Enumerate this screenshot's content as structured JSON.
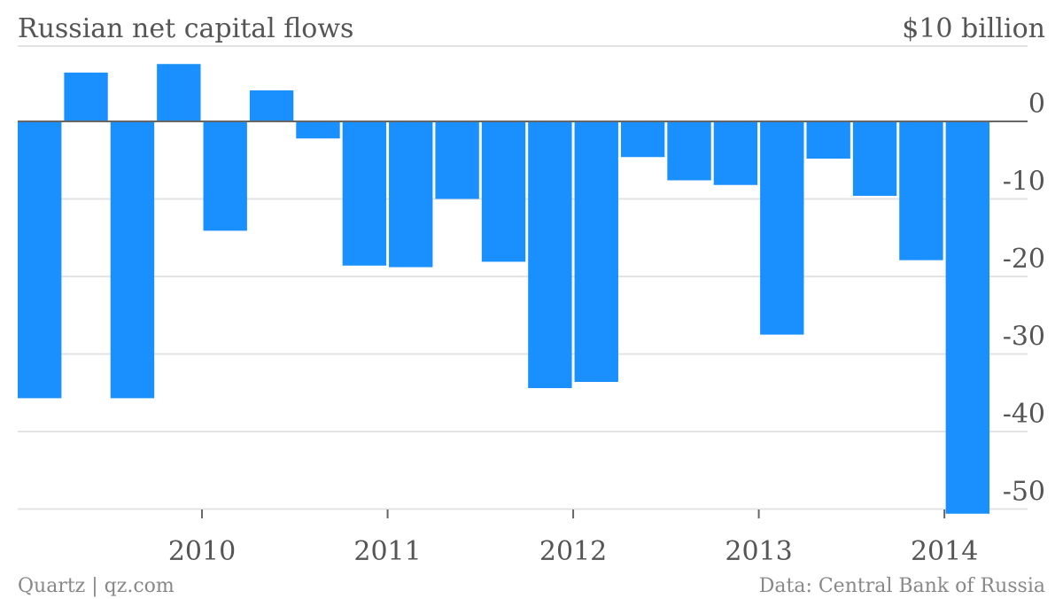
{
  "header": {
    "title": "Russian net capital flows",
    "unit_label": "$10 billion"
  },
  "footer": {
    "source_left": "Quartz | qz.com",
    "source_right": "Data: Central Bank of Russia"
  },
  "colors": {
    "bar": "#1a90ff",
    "grid": "#e3e3e3",
    "zero_line": "#666666",
    "text": "#555555"
  },
  "chart_data": {
    "type": "bar",
    "title": "Russian net capital flows",
    "ylabel": "$10 billion",
    "xlabel": "",
    "ylim": [
      -51,
      10
    ],
    "yticks": [
      0,
      -10,
      -20,
      -30,
      -40,
      -50
    ],
    "ytick_labels": [
      "0",
      "-10",
      "-20",
      "-30",
      "-40",
      "-50"
    ],
    "grid": true,
    "x_year_labels": [
      {
        "label": "2010",
        "at_index": 4
      },
      {
        "label": "2011",
        "at_index": 8
      },
      {
        "label": "2012",
        "at_index": 12
      },
      {
        "label": "2013",
        "at_index": 16
      },
      {
        "label": "2014",
        "at_index": 20
      }
    ],
    "values": [
      -35.7,
      6.3,
      -35.7,
      7.4,
      -14.1,
      4.0,
      -2.2,
      -18.6,
      -18.8,
      -10.0,
      -18.1,
      -34.4,
      -33.6,
      -4.6,
      -7.6,
      -8.2,
      -27.5,
      -4.8,
      -9.6,
      -17.9,
      -50.6
    ]
  }
}
